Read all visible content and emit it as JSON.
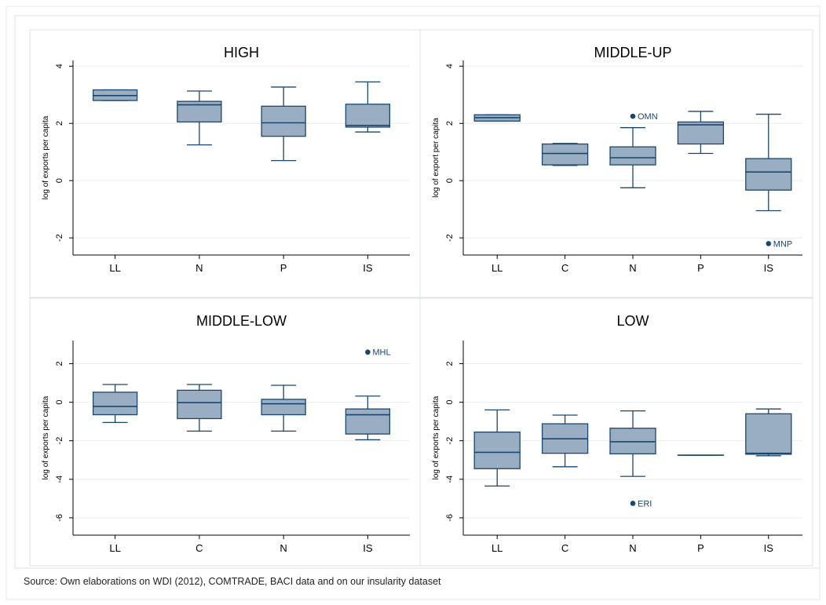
{
  "source_note": "Source: Own elaborations on WDI (2012), COMTRADE, BACI data and on our insularity dataset",
  "colors": {
    "box_fill": "#99aec3",
    "stroke": "#1a476f",
    "grid": "#e8eef3",
    "axis": "#000000",
    "panel_border": "#dde3e9"
  },
  "chart_data": [
    {
      "type": "box",
      "title": "HIGH",
      "ylabel": "log of exports per capita",
      "ylim": [
        -2.6,
        4.2
      ],
      "yticks": [
        -2,
        0,
        2,
        4
      ],
      "categories": [
        "LL",
        "N",
        "P",
        "IS"
      ],
      "boxes": [
        {
          "category": "LL",
          "lw": 2.8,
          "q1": 2.8,
          "median": 2.97,
          "q3": 3.17,
          "uw": 3.17
        },
        {
          "category": "N",
          "lw": 1.25,
          "q1": 2.05,
          "median": 2.65,
          "q3": 2.77,
          "uw": 3.13
        },
        {
          "category": "P",
          "lw": 0.7,
          "q1": 1.55,
          "median": 2.02,
          "q3": 2.6,
          "uw": 3.27
        },
        {
          "category": "IS",
          "lw": 1.7,
          "q1": 1.87,
          "median": 1.93,
          "q3": 2.67,
          "uw": 3.45
        }
      ],
      "outliers": []
    },
    {
      "type": "box",
      "title": "MIDDLE-UP",
      "ylabel": "log of export per capita",
      "ylim": [
        -2.6,
        4.2
      ],
      "yticks": [
        -2,
        0,
        2,
        4
      ],
      "categories": [
        "LL",
        "C",
        "N",
        "P",
        "IS"
      ],
      "boxes": [
        {
          "category": "LL",
          "lw": 2.08,
          "q1": 2.08,
          "median": 2.2,
          "q3": 2.3,
          "uw": 2.3
        },
        {
          "category": "C",
          "lw": 0.53,
          "q1": 0.55,
          "median": 0.95,
          "q3": 1.28,
          "uw": 1.3
        },
        {
          "category": "N",
          "lw": -0.25,
          "q1": 0.55,
          "median": 0.8,
          "q3": 1.18,
          "uw": 1.85
        },
        {
          "category": "P",
          "lw": 0.95,
          "q1": 1.28,
          "median": 1.95,
          "q3": 2.05,
          "uw": 2.42
        },
        {
          "category": "IS",
          "lw": -1.05,
          "q1": -0.33,
          "median": 0.3,
          "q3": 0.77,
          "uw": 2.32
        }
      ],
      "outliers": [
        {
          "category": "N",
          "value": 2.25,
          "label": "OMN"
        },
        {
          "category": "IS",
          "value": -2.2,
          "label": "MNP"
        }
      ]
    },
    {
      "type": "box",
      "title": "MIDDLE-LOW",
      "ylabel": "log of exports per capita",
      "ylim": [
        -6.9,
        3.2
      ],
      "yticks": [
        -6,
        -4,
        -2,
        0,
        2
      ],
      "categories": [
        "LL",
        "C",
        "N",
        "IS"
      ],
      "boxes": [
        {
          "category": "LL",
          "lw": -1.05,
          "q1": -0.65,
          "median": -0.22,
          "q3": 0.52,
          "uw": 0.92
        },
        {
          "category": "C",
          "lw": -1.5,
          "q1": -0.85,
          "median": -0.02,
          "q3": 0.62,
          "uw": 0.92
        },
        {
          "category": "N",
          "lw": -1.5,
          "q1": -0.65,
          "median": -0.08,
          "q3": 0.15,
          "uw": 0.88
        },
        {
          "category": "IS",
          "lw": -1.95,
          "q1": -1.65,
          "median": -0.65,
          "q3": -0.35,
          "uw": 0.32
        }
      ],
      "outliers": [
        {
          "category": "IS",
          "value": 2.6,
          "label": "MHL"
        }
      ]
    },
    {
      "type": "box",
      "title": "LOW",
      "ylabel": "log of exports per capita",
      "ylim": [
        -6.9,
        3.2
      ],
      "yticks": [
        -6,
        -4,
        -2,
        0,
        2
      ],
      "categories": [
        "LL",
        "C",
        "N",
        "P",
        "IS"
      ],
      "boxes": [
        {
          "category": "LL",
          "lw": -4.35,
          "q1": -3.45,
          "median": -2.6,
          "q3": -1.55,
          "uw": -0.4
        },
        {
          "category": "C",
          "lw": -3.35,
          "q1": -2.65,
          "median": -1.9,
          "q3": -1.12,
          "uw": -0.67
        },
        {
          "category": "N",
          "lw": -3.85,
          "q1": -2.68,
          "median": -2.05,
          "q3": -1.35,
          "uw": -0.45
        },
        {
          "category": "P",
          "lw": -2.75,
          "q1": -2.75,
          "median": -2.75,
          "q3": -2.75,
          "uw": -2.75
        },
        {
          "category": "IS",
          "lw": -2.78,
          "q1": -2.7,
          "median": -2.65,
          "q3": -0.6,
          "uw": -0.35
        }
      ],
      "outliers": [
        {
          "category": "N",
          "value": -5.25,
          "label": "ERI"
        }
      ]
    }
  ]
}
